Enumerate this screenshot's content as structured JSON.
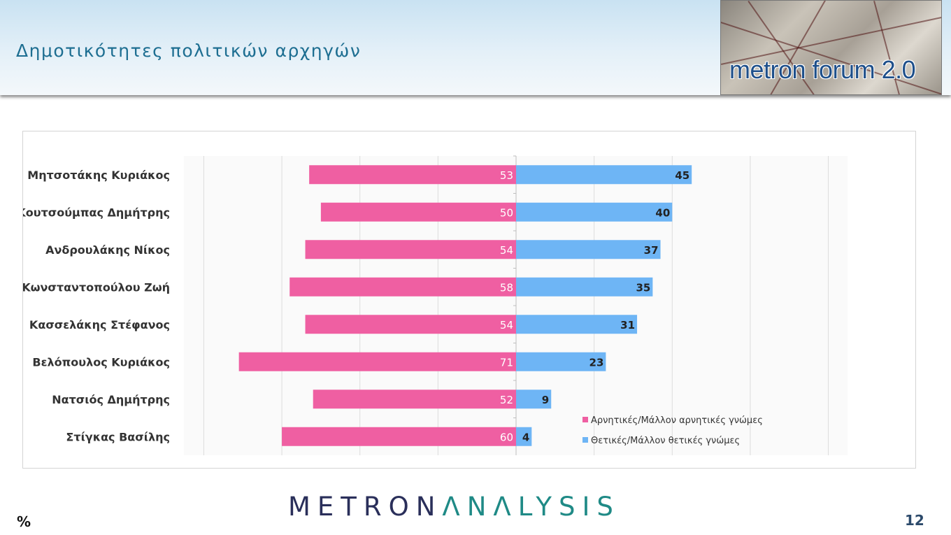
{
  "header": {
    "title": "Δημοτικότητες πολιτικών αρχηγών",
    "logo_text": "metron forum 2.0"
  },
  "footer": {
    "brand_part1": "METRON",
    "brand_part2": "ΛNΛLYSIS",
    "unit": "%",
    "page_number": "12"
  },
  "colors": {
    "negative": "#ef5fa2",
    "positive": "#6eb5f5",
    "title": "#1d6e91"
  },
  "chart_data": {
    "type": "bar",
    "orientation": "horizontal-diverging",
    "categories": [
      "Μητσοτάκης Κυριάκος",
      "Κουτσούμπας Δημήτρης",
      "Ανδρουλάκης Νίκος",
      "Κωνσταντοπούλου Ζωή",
      "Κασσελάκης Στέφανος",
      "Βελόπουλος Κυριάκος",
      "Νατσιός Δημήτρης",
      "Στίγκας Βασίλης"
    ],
    "series": [
      {
        "name": "Αρνητικές/Μάλλον αρνητικές γνώμες",
        "values": [
          53,
          50,
          54,
          58,
          54,
          71,
          52,
          60
        ]
      },
      {
        "name": "Θετικές/Μάλλον θετικές γνώμες",
        "values": [
          45,
          40,
          37,
          35,
          31,
          23,
          9,
          4
        ]
      }
    ],
    "xlim": [
      -85,
      85
    ],
    "grid": true,
    "legend_position": "bottom-right-inside"
  }
}
